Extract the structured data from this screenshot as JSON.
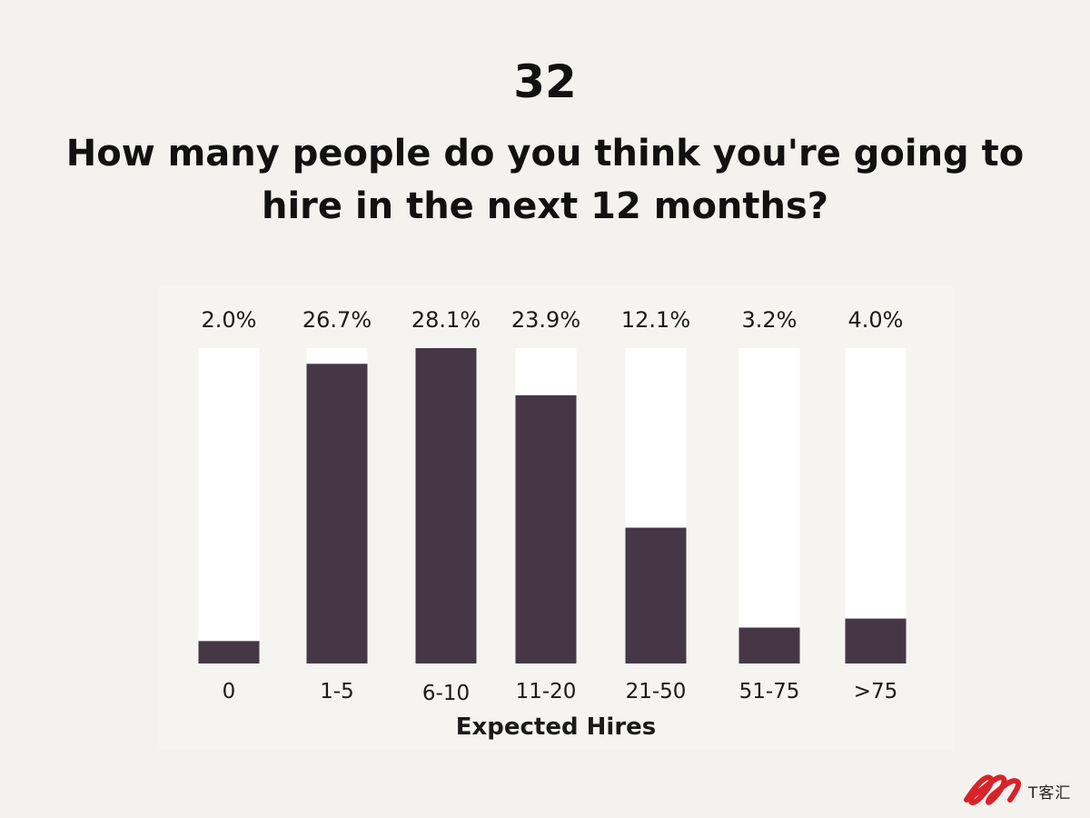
{
  "slide": {
    "number": "32",
    "question": "How many people do you think you're going to hire in the next 12 months?"
  },
  "chart_data": {
    "type": "bar",
    "categories": [
      "0",
      "1-5",
      "6-10",
      "11-20",
      "21-50",
      "51-75",
      ">75"
    ],
    "values": [
      2.0,
      26.7,
      28.1,
      23.9,
      12.1,
      3.2,
      4.0
    ],
    "value_labels": [
      "2.0%",
      "26.7%",
      "28.1%",
      "23.9%",
      "12.1%",
      "3.2%",
      "4.0%"
    ],
    "xlabel": "Expected Hires",
    "ylim": [
      0,
      28.1
    ],
    "grid": false,
    "legend": "none",
    "colors": {
      "bar": "#463746",
      "track": "#ffffff"
    }
  },
  "watermark": {
    "text": "T客汇",
    "color": "#d8232a"
  }
}
